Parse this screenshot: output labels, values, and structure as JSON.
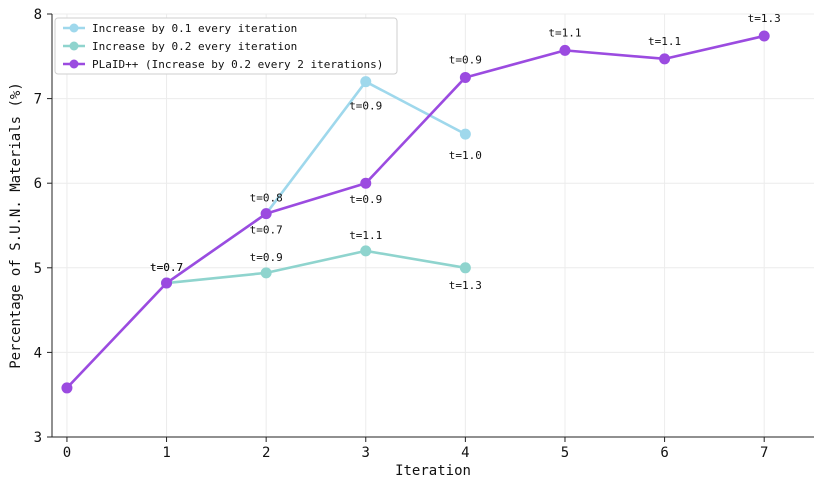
{
  "chart_data": {
    "type": "line",
    "xlabel": "Iteration",
    "ylabel": "Percentage of S.U.N. Materials (%)",
    "xlim": [
      -0.15,
      7.5
    ],
    "ylim": [
      3,
      8
    ],
    "x_ticks": [
      "0",
      "1",
      "2",
      "3",
      "4",
      "5",
      "6",
      "7"
    ],
    "y_ticks": [
      "3",
      "4",
      "5",
      "6",
      "7",
      "8"
    ],
    "grid": true,
    "legend_position": "top-left",
    "series": [
      {
        "name": "Increase by 0.1 every iteration",
        "color": "#9fd8ec",
        "x": [
          1,
          2,
          3,
          4
        ],
        "y": [
          4.82,
          5.64,
          7.2,
          6.58
        ],
        "labels": [
          "t=0.7",
          "t=0.8",
          "t=0.9",
          "t=1.0"
        ]
      },
      {
        "name": "Increase by 0.2 every iteration",
        "color": "#8fd4ce",
        "x": [
          1,
          2,
          3,
          4
        ],
        "y": [
          4.82,
          4.94,
          5.2,
          5.0
        ],
        "labels": [
          "t=0.7",
          "t=0.9",
          "t=1.1",
          "t=1.3"
        ]
      },
      {
        "name": "PLaID++ (Increase by 0.2 every 2 iterations)",
        "color": "#9b4be0",
        "x": [
          0,
          1,
          2,
          3,
          4,
          5,
          6,
          7
        ],
        "y": [
          3.58,
          4.82,
          5.64,
          6.0,
          7.25,
          7.57,
          7.47,
          7.74
        ],
        "labels": [
          "",
          "",
          "t=0.7",
          "t=0.9",
          "t=0.9",
          "t=1.1",
          "t=1.1",
          "t=1.3"
        ]
      }
    ]
  }
}
